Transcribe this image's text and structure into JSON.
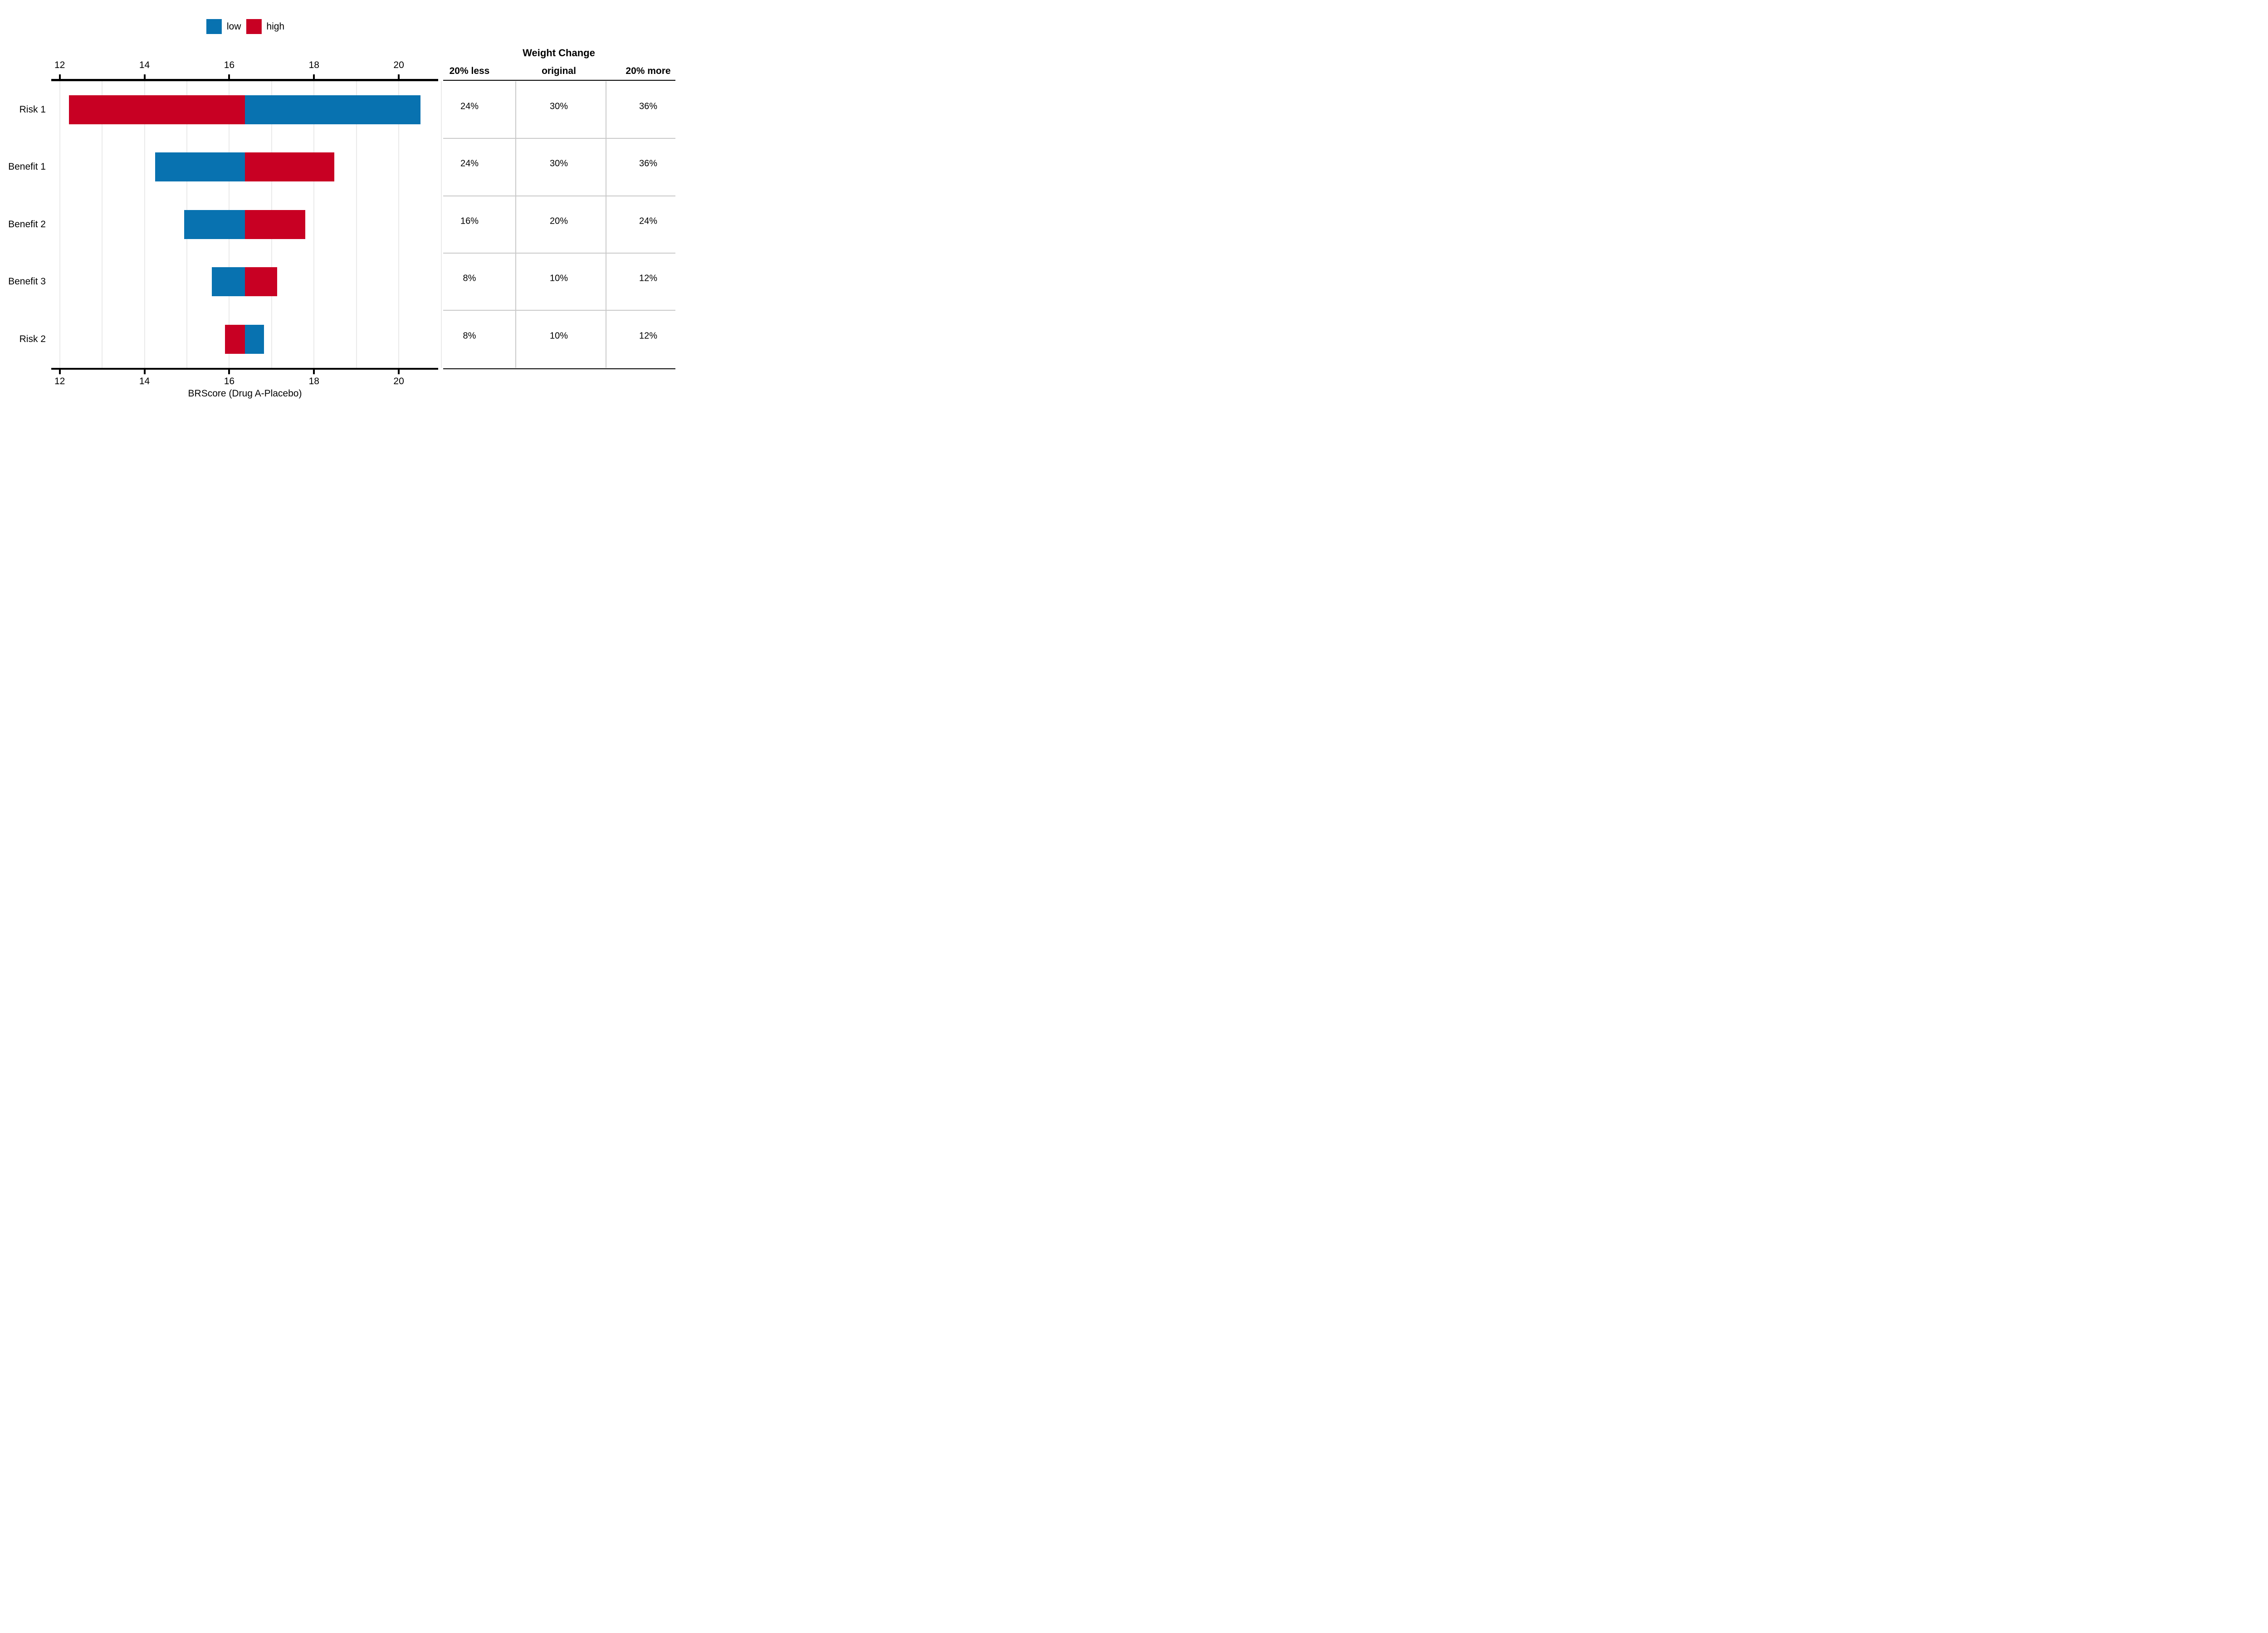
{
  "colors": {
    "low": "#0872B0",
    "high": "#C80023",
    "axis": "#000000",
    "gridline": "#EAEAEA",
    "table_rule": "#C9C9C9"
  },
  "legend": {
    "items": [
      {
        "label": "low",
        "color": "#0872B0"
      },
      {
        "label": "high",
        "color": "#C80023"
      }
    ]
  },
  "chart_data": {
    "type": "bar",
    "subtype": "tornado-sensitivity",
    "orientation": "horizontal",
    "title": "",
    "xlabel": "BRScore (Drug A-Placebo)",
    "ylabel": "",
    "categories": [
      "Risk 1",
      "Benefit 1",
      "Benefit 2",
      "Benefit 3",
      "Risk 2"
    ],
    "baseline_value": 16.37,
    "series": [
      {
        "name": "low",
        "color": "#0872B0",
        "values": [
          20.51,
          14.25,
          14.94,
          15.59,
          16.82
        ]
      },
      {
        "name": "high",
        "color": "#C80023",
        "values": [
          12.22,
          18.48,
          17.79,
          17.13,
          15.9
        ]
      }
    ],
    "x_ticks": [
      12,
      14,
      16,
      18,
      20
    ],
    "x_gridlines": [
      12,
      13,
      14,
      15,
      16,
      17,
      18,
      19,
      20,
      21
    ],
    "x_range": [
      11.8,
      20.93
    ],
    "grid": true,
    "legend_position": "top-center",
    "axis_sides": [
      "top",
      "bottom"
    ]
  },
  "table": {
    "title": "Weight Change",
    "columns": [
      "20% less",
      "original",
      "20% more"
    ],
    "rows": [
      {
        "category": "Risk 1",
        "cells": [
          "24%",
          "30%",
          "36%"
        ]
      },
      {
        "category": "Benefit 1",
        "cells": [
          "24%",
          "30%",
          "36%"
        ]
      },
      {
        "category": "Benefit 2",
        "cells": [
          "16%",
          "20%",
          "24%"
        ]
      },
      {
        "category": "Benefit 3",
        "cells": [
          "8%",
          "10%",
          "12%"
        ]
      },
      {
        "category": "Risk 2",
        "cells": [
          "8%",
          "10%",
          "12%"
        ]
      }
    ]
  }
}
